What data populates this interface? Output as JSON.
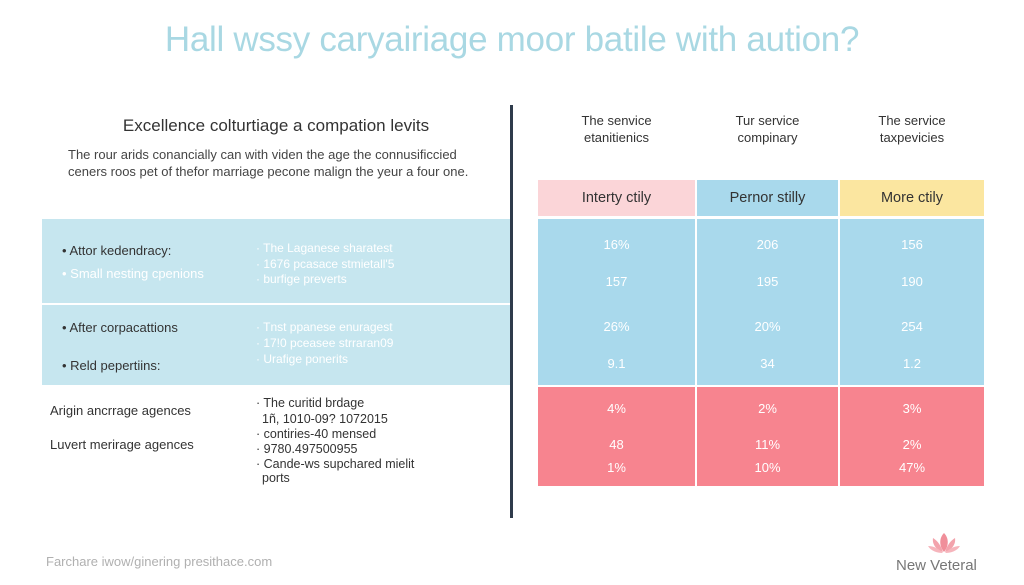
{
  "title": "Hall wssy caryairiage moor batile with aution?",
  "left": {
    "heading": "Excellence colturtiage a compation levits",
    "paragraph": [
      "The rour arids conancially can with viden the age the connusificcied",
      "ceners roos pet of thefor marriage pecone malign the yeur a four one."
    ],
    "band1": {
      "items": [
        "• Attor kedendracy:",
        "• Small nesting cpenions"
      ],
      "details": [
        "· The Laganese sharatest",
        "· 1676 pcasace stmietall'5",
        "· burfige preverts"
      ]
    },
    "band2": {
      "items": [
        "• After corpacattions",
        "• Reld pepertiins:"
      ],
      "details": [
        "· Tnst ppanese enuragest",
        "· 17!0 pceasee strraran09",
        "· Urafige ponerits"
      ]
    },
    "bottom": {
      "items": [
        "Arigin ancrrage agences",
        "Luvert merirage agences"
      ],
      "details": [
        "· The curitid brdage",
        "1ñ, 1010-09? 1072015",
        "· contiries-40 mensed",
        "· 9780.497500955",
        "· Cande-ws supchared mielit",
        "ports"
      ]
    }
  },
  "table": {
    "column_titles": [
      [
        "The senvice",
        "etanitienics"
      ],
      [
        "Tur service",
        "compinary"
      ],
      [
        "The service",
        "taxpevicies"
      ]
    ],
    "headers": [
      "Interty ctily",
      "Pernor stilly",
      "More ctily"
    ],
    "header_colors": [
      "#fbd5d8",
      "#a9d9ec",
      "#fbe6a0"
    ],
    "blue_rows": [
      [
        "16%",
        "206",
        "156"
      ],
      [
        "157",
        "195",
        "190"
      ],
      [
        "26%",
        "20%",
        "254"
      ],
      [
        "9.1",
        "34",
        "1.2"
      ]
    ],
    "red_rows": [
      [
        "4%",
        "2%",
        "3%"
      ],
      [
        "48",
        "11%",
        "2%"
      ],
      [
        "1%",
        "10%",
        "47%"
      ]
    ]
  },
  "footer": {
    "url": "Farchare iwow/ginering presithace.com",
    "brand": "New Veteral"
  }
}
